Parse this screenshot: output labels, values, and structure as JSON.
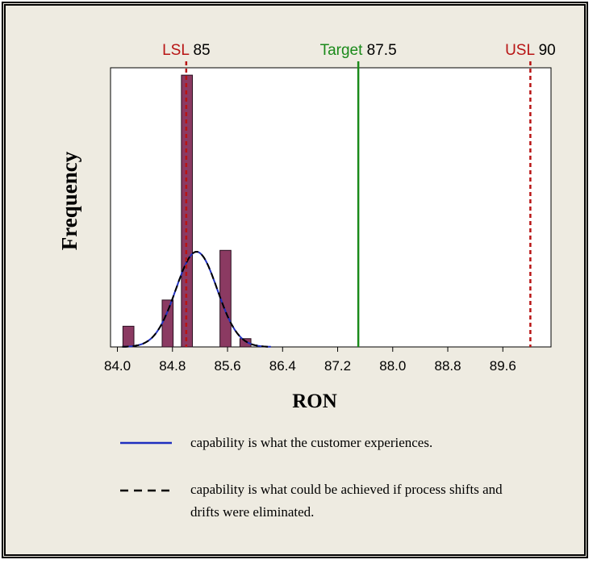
{
  "chart_data": {
    "type": "bar",
    "xlabel": "RON",
    "ylabel": "Frequency",
    "xlim": [
      83.9,
      90.3
    ],
    "x_ticks": [
      "84.0",
      "84.8",
      "85.6",
      "86.4",
      "87.2",
      "88.0",
      "88.8",
      "89.6"
    ],
    "x_tick_values": [
      84.0,
      84.8,
      85.6,
      86.4,
      87.2,
      88.0,
      88.8,
      89.6
    ],
    "bar_width": 0.16,
    "ylim": [
      0,
      1
    ],
    "bars": [
      {
        "x": 84.08,
        "value": 0.075
      },
      {
        "x": 84.65,
        "value": 0.17
      },
      {
        "x": 84.93,
        "value": 0.985
      },
      {
        "x": 85.49,
        "value": 0.35
      },
      {
        "x": 85.78,
        "value": 0.03
      }
    ],
    "curves": [
      {
        "style": "solid",
        "color": "#1f2fbf",
        "mean": 85.15,
        "sd": 0.3,
        "peak": 0.345
      },
      {
        "style": "dashed",
        "color": "#000000",
        "mean": 85.15,
        "sd": 0.3,
        "peak": 0.345
      }
    ],
    "spec_lines": [
      {
        "name": "LSL",
        "value_label": "85",
        "x": 85.0,
        "color": "#b81414",
        "style": "dashed"
      },
      {
        "name": "Target",
        "value_label": "87.5",
        "x": 87.5,
        "color": "#1a8a1a",
        "style": "solid"
      },
      {
        "name": "USL",
        "value_label": "90",
        "x": 90.0,
        "color": "#b81414",
        "style": "dashed"
      }
    ],
    "bar_color": "#8b3a62",
    "grid": false
  },
  "legend": {
    "items": [
      {
        "style": "solid",
        "color": "#1f2fbf",
        "text": "capability is what the customer experiences."
      },
      {
        "style": "dashed",
        "color": "#000000",
        "text": "capability is what could be achieved if process shifts and drifts were eliminated."
      }
    ]
  }
}
